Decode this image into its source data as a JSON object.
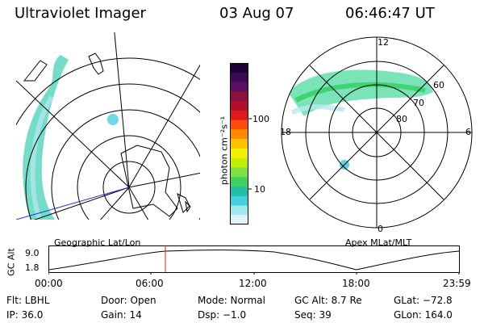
{
  "header": {
    "instrument": "Ultraviolet Imager",
    "date": "03 Aug 07",
    "time": "06:46:47 UT"
  },
  "colorbar": {
    "unit_label": "photon cm⁻²s⁻¹",
    "ticks": [
      "100",
      "10"
    ],
    "colors": [
      "#1a0033",
      "#3a0a55",
      "#5a1060",
      "#8a1040",
      "#b01030",
      "#e01a1a",
      "#ff4a10",
      "#ff8a00",
      "#ffc000",
      "#f0f000",
      "#c0f000",
      "#80e040",
      "#40d060",
      "#20c0a0",
      "#40d0e0",
      "#a0e8f0",
      "#e0f4f8"
    ]
  },
  "left_map": {
    "label": "Geographic Lat/Lon"
  },
  "right_map": {
    "label": "Apex MLat/MLT",
    "lat_labels": [
      "60",
      "70",
      "80"
    ],
    "mlt_labels": [
      "12",
      "18",
      "6",
      "0"
    ]
  },
  "timeline": {
    "axis_label": "GC Alt",
    "y_ticks": [
      "9.0",
      "1.8"
    ],
    "x_ticks": [
      "00:00",
      "06:00",
      "12:00",
      "18:00",
      "23:59"
    ]
  },
  "info": {
    "filter": "Flt: LBHL",
    "ip": "IP: 36.0",
    "door": "Door: Open",
    "gain": "Gain: 14",
    "mode": "Mode: Normal",
    "dsp": "Dsp:  −1.0",
    "gc_alt": "GC Alt: 8.7 Re",
    "seq": "Seq: 39",
    "glat": "GLat: −72.8",
    "glon": "GLon: 164.0"
  }
}
